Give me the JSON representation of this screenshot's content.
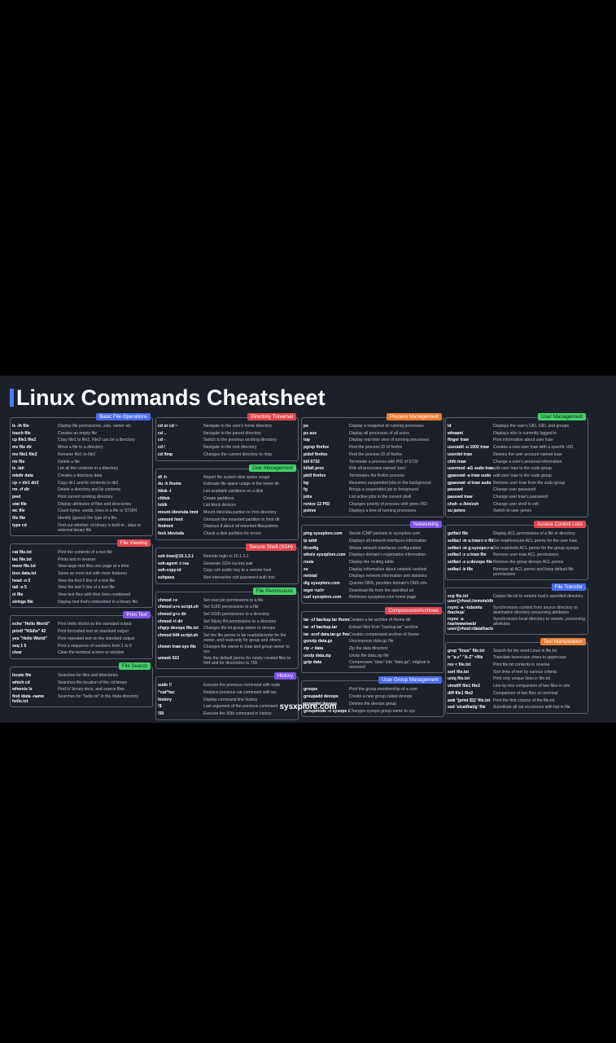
{
  "title": "Linux Commands Cheatsheet",
  "footer": "sysxplore.com",
  "colors": {
    "blue": "#4a6cf0",
    "red": "#e2464f",
    "green": "#44d06a",
    "purple": "#7d52e8",
    "orange": "#ee7d32"
  },
  "columns": [
    {
      "sections": [
        {
          "title": "Basic File Operations",
          "color": "#4a6cf0",
          "text": "#ffffff",
          "rows": [
            {
              "cmd": "ls -lh file",
              "desc": "Display file permissions, size, owner etc"
            },
            {
              "cmd": "touch file",
              "desc": "Creates an empty file"
            },
            {
              "cmd": "cp file1 file2",
              "desc": "Copy file1 to file2, File2 can be a directory"
            },
            {
              "cmd": "mv file dir",
              "desc": "Move a file to a directory"
            },
            {
              "cmd": "mv file1 file2",
              "desc": "Rename file1 to file2"
            },
            {
              "cmd": "rm file",
              "desc": "Delete a file"
            },
            {
              "cmd": "ls -lah",
              "desc": "List all the contents in a directory"
            },
            {
              "cmd": "mkdir data",
              "desc": "Creates a directory data"
            },
            {
              "cmd": "cp -r dir1 dir2",
              "desc": "Copy dir1 and its contents to dir2"
            },
            {
              "cmd": "rm -rf dir",
              "desc": "Delete a directory and its contents"
            },
            {
              "cmd": "pwd",
              "desc": "Print current working directory"
            },
            {
              "cmd": "stat file",
              "desc": "Display attributes of files and directories"
            },
            {
              "cmd": "wc file",
              "desc": "Count bytes, words, lines in a file or STDIN"
            },
            {
              "cmd": "file file",
              "desc": "Identify (guess) the type of a file."
            },
            {
              "cmd": "type cd",
              "desc": "Find out whether cd binary is built-in , alias or external binary file",
              "tall": true
            }
          ]
        },
        {
          "title": "File Viewing",
          "color": "#e2464f",
          "text": "#ffffff",
          "rows": [
            {
              "cmd": "cat file.txt",
              "desc": "Print the contents of a text file"
            },
            {
              "cmd": "tac file.txt",
              "desc": "Prints text in reverse"
            },
            {
              "cmd": "more file.txt",
              "desc": "View large text files one page at a time"
            },
            {
              "cmd": "less data.txt",
              "desc": "Same as more but with more features"
            },
            {
              "cmd": "head -n 5",
              "desc": "View the first 5 line of a text file"
            },
            {
              "cmd": "tail -n 5",
              "desc": "View the last 5 line of a text file"
            },
            {
              "cmd": "nl file",
              "desc": "View text files with their lines numbered"
            },
            {
              "cmd": "strings file",
              "desc": "Display text that's embedded in a binary file"
            }
          ]
        },
        {
          "title": "Print Text",
          "color": "#7d52e8",
          "text": "#ffffff",
          "rows": [
            {
              "cmd": "echo \"Hello World\"",
              "desc": "Print Hello World on the standard output"
            },
            {
              "cmd": "printf \"%5d\\n\" 42",
              "desc": "Print formatted text on standard output"
            },
            {
              "cmd": "yes \"Hello World\"",
              "desc": "Print repeated text on the standard output"
            },
            {
              "cmd": "seq 1 5",
              "desc": "Print a sequence of numbers from 1 to 5"
            },
            {
              "cmd": "clear",
              "desc": "Clear the terminal screen or window"
            }
          ]
        },
        {
          "title": "File Search",
          "color": "#44d06a",
          "text": "#10241a",
          "rows": [
            {
              "cmd": "locate file",
              "desc": "Searches for files and directories"
            },
            {
              "cmd": "which cd",
              "desc": "Searches the location of the cd binary"
            },
            {
              "cmd": "whereis ls",
              "desc": "Find ls' binary docs, and source files"
            },
            {
              "cmd": "find /data -name hello.txt",
              "desc": "Searches for \"hello.txt\" in the /data directory",
              "tall": true
            }
          ]
        }
      ]
    },
    {
      "sections": [
        {
          "title": "Directory Traversal",
          "color": "#e2464f",
          "text": "#ffffff",
          "rows": [
            {
              "cmd": "cd or cd ~",
              "desc": "Navigate to the user's home directory"
            },
            {
              "cmd": "cd ..",
              "desc": "Navigate to the parent directory"
            },
            {
              "cmd": "cd -",
              "desc": "Switch to the previous working directory"
            },
            {
              "cmd": "cd /",
              "desc": "Navigate to the root directory"
            },
            {
              "cmd": "cd /tmp",
              "desc": "Changes the current directory to /tmp"
            }
          ]
        },
        {
          "title": "Disk Management",
          "color": "#44d06a",
          "text": "#10241a",
          "rows": [
            {
              "cmd": "df -h",
              "desc": "Report file system disk space usage"
            },
            {
              "cmd": "du -h /home",
              "desc": "Estimate file space usage in the home dir"
            },
            {
              "cmd": "fdisk -l",
              "desc": "List available partitions on a disk"
            },
            {
              "cmd": "cfdisk",
              "desc": "Create partitions"
            },
            {
              "cmd": "lsblk",
              "desc": "List block devices"
            },
            {
              "cmd": "mount /dev/sda /mnt",
              "desc": "Mount /dev/sda partion to /mnt directory"
            },
            {
              "cmd": "umount /mnt",
              "desc": "Unmount the mounted partition in /mnt dir"
            },
            {
              "cmd": "findmnt",
              "desc": "Displays if about all mounted filesystems"
            },
            {
              "cmd": "fsck /dev/sda",
              "desc": "Check a disk partition for errors"
            }
          ]
        },
        {
          "title": "Secure Shell (SSH)",
          "color": "#e2464f",
          "text": "#ffffff",
          "rows": [
            {
              "cmd": "ssh traw@10.1.3.1",
              "desc": "Remote login to 10.1.3.1"
            },
            {
              "cmd": "ssh-agent -t rsa",
              "desc": "Generate SSH rsa key pair"
            },
            {
              "cmd": "ssh-copy-id",
              "desc": "Copy ssh public key to a remote host"
            },
            {
              "cmd": "sshpass",
              "desc": "Non-interactive ssh password auth tool"
            }
          ]
        },
        {
          "title": "File Permissions",
          "color": "#44d06a",
          "text": "#10241a",
          "rows": [
            {
              "cmd": "chmod +x",
              "desc": "Set execute permissions to a file"
            },
            {
              "cmd": "chmod u+s script.sh",
              "desc": "Set SUID permissions to a file"
            },
            {
              "cmd": "chmod g+s dir",
              "desc": "Set SGID permissions to a directory"
            },
            {
              "cmd": "chmod +t dir",
              "desc": "Set Sticky Bit permissions to a directory"
            },
            {
              "cmd": "chgrp devops file.txt",
              "desc": "Changes file.txt group owner to devops"
            },
            {
              "cmd": "chmod 644 script.sh",
              "desc": "Set the file perms to be readable/write for the owner, and read-only for group and others",
              "tall": true
            },
            {
              "cmd": "chown traw:sys file",
              "desc": "Changes file owner to traw and group owner to sys",
              "tall": true
            },
            {
              "cmd": "umask 022",
              "desc": "Sets the default perms for newly created files to 644 and for directories to 755",
              "tall": true
            }
          ]
        },
        {
          "title": "History",
          "color": "#7d52e8",
          "text": "#ffffff",
          "rows": [
            {
              "cmd": "sudo !!",
              "desc": "Execute the previous command with sudo"
            },
            {
              "cmd": "^cat^tac",
              "desc": "Replace previous cat command with tac"
            },
            {
              "cmd": "history",
              "desc": "Display command line history"
            },
            {
              "cmd": "!$",
              "desc": "Last argument of the previous command"
            },
            {
              "cmd": "!50",
              "desc": "Execute the 50th command in history"
            }
          ]
        }
      ]
    },
    {
      "sections": [
        {
          "title": "Process Management",
          "color": "#ee7d32",
          "text": "#ffffff",
          "rows": [
            {
              "cmd": "ps",
              "desc": "Display a snapshot of running processes"
            },
            {
              "cmd": "ps aux",
              "desc": "Display all processes of all users"
            },
            {
              "cmd": "top",
              "desc": "Display real-time view of running processes"
            },
            {
              "cmd": "pgrep firefox",
              "desc": "Find the process ID of firefox"
            },
            {
              "cmd": "pidof firefox",
              "desc": "Find the process ID of firefox"
            },
            {
              "cmd": "kill 6732",
              "desc": "Terminate a process with PID of 6732"
            },
            {
              "cmd": "killall proc",
              "desc": "Kills all processes named 'proc'"
            },
            {
              "cmd": "pkill firefox",
              "desc": "Terminates the firefox process"
            },
            {
              "cmd": "bg",
              "desc": "Resumes suspended jobs in the background"
            },
            {
              "cmd": "fg",
              "desc": "Brings a suspended job to foreground"
            },
            {
              "cmd": "jobs",
              "desc": "List active jobs in the current shell"
            },
            {
              "cmd": "renice 12 PID",
              "desc": "Changes priority of process with given PID"
            },
            {
              "cmd": "pstree",
              "desc": "Displays a tree of running processes"
            }
          ]
        },
        {
          "title": "Networking",
          "color": "#7d52e8",
          "text": "#ffffff",
          "rows": [
            {
              "cmd": "ping sysxplore.com",
              "desc": "Sends ICMP packets to sysxplore.com"
            },
            {
              "cmd": "ip addr",
              "desc": "Displays all network interfaces information"
            },
            {
              "cmd": "ifconfig",
              "desc": "Shows network interfaces configuration"
            },
            {
              "cmd": "whois sysxplore.com",
              "desc": "Displays domain's registration information"
            },
            {
              "cmd": "route",
              "desc": "Display the routing table"
            },
            {
              "cmd": "ss",
              "desc": "Display information about network sockets"
            },
            {
              "cmd": "netstat",
              "desc": "Displays network information and statistics"
            },
            {
              "cmd": "dig sysxplore.com",
              "desc": "Queries DNS, provides domain's DNS info"
            },
            {
              "cmd": "wget <url>",
              "desc": "Download file from the specified url"
            },
            {
              "cmd": "curl sysxplore.com",
              "desc": "Retrieves sysxplore.com home page"
            }
          ]
        },
        {
          "title": "Compression/Archives",
          "color": "#e2464f",
          "text": "#ffffff",
          "rows": [
            {
              "cmd": "tar -cf backup.tar /home",
              "desc": "Creates a tar archive of /home dir"
            },
            {
              "cmd": "tar -xf backup.tar",
              "desc": "Extract files from \"backup.tar\" archive"
            },
            {
              "cmd": "tar -zcvf data.tar.gz /home",
              "desc": "Creates compressed archive of /home"
            },
            {
              "cmd": "gunzip data.gz",
              "desc": "Uncompress data.gz file"
            },
            {
              "cmd": "zip -r data",
              "desc": "Zip the data directory"
            },
            {
              "cmd": "unzip data.zip",
              "desc": "Unzip the data.zip file"
            },
            {
              "cmd": "gzip data",
              "desc": "Compresses \"data\" into \"data.gz\", original is removed",
              "tall": true
            }
          ]
        },
        {
          "title": "User Group Management",
          "color": "#4a6cf0",
          "text": "#ffffff",
          "rows": [
            {
              "cmd": "groups",
              "desc": "Print the group membership of a user"
            },
            {
              "cmd": "groupadd devops",
              "desc": "Create a new group called devops"
            },
            {
              "cmd": "groupdel devops",
              "desc": "Deletes the devops group"
            },
            {
              "cmd": "groupmode -n sysops sys",
              "desc": "Changes sysops group name to sys"
            }
          ]
        }
      ]
    },
    {
      "sections": [
        {
          "title": "User Management",
          "color": "#44d06a",
          "text": "#10241a",
          "rows": [
            {
              "cmd": "id",
              "desc": "Displays the user's UID, GID, and groups"
            },
            {
              "cmd": "whoami",
              "desc": "Displays who is currently logged in"
            },
            {
              "cmd": "finger traw",
              "desc": "Print information about user traw"
            },
            {
              "cmd": "useradd -u 1002 traw",
              "desc": "Creates a new user traw with a specific UID"
            },
            {
              "cmd": "userdel traw",
              "desc": "Deletes the user account named traw"
            },
            {
              "cmd": "chfn traw",
              "desc": "Change a user's personal information"
            },
            {
              "cmd": "usermod -aG sudo traw",
              "desc": "add user traw to the sudo group"
            },
            {
              "cmd": "gpasswd -a traw sudo",
              "desc": "add user traw to the sudo group"
            },
            {
              "cmd": "gpasswd -d traw sudo",
              "desc": "Remove user traw from the sudo group"
            },
            {
              "cmd": "passwd",
              "desc": "Change user password"
            },
            {
              "cmd": "passwd traw",
              "desc": "Change user traw's password"
            },
            {
              "cmd": "chsh -s /bin/zsh",
              "desc": "Change user shell to zsh"
            },
            {
              "cmd": "su james",
              "desc": "Switch to user james"
            }
          ]
        },
        {
          "title": "Access Control Lists",
          "color": "#e2464f",
          "text": "#ffffff",
          "rows": [
            {
              "cmd": "getfacl file",
              "desc": "Display ACL permissions of a file or directory"
            },
            {
              "cmd": "setfacl -m u:traw:r-x file",
              "desc": "Set read/execute ACL perms for the user traw"
            },
            {
              "cmd": "setfacl -m g:sysops:r-w file",
              "desc": "Set read/write ACL perms for the group sysops"
            },
            {
              "cmd": "setfacl -x u:traw file",
              "desc": "Remove user traw ACL permissions"
            },
            {
              "cmd": "setfacl -x u:devops file",
              "desc": "Remove the group devops ACL perms"
            },
            {
              "cmd": "setfacl -b file",
              "desc": "Remove all ACL perms and keep default file permissions",
              "tall": true
            }
          ]
        },
        {
          "title": "File Transfer",
          "color": "#4a6cf0",
          "text": "#ffffff",
          "rows": [
            {
              "cmd": "scp file.txt user@rhost:/remote/dir",
              "desc": "Copies file.txt to remote host's specified directory",
              "tall": true
            },
            {
              "cmd": "rsync -a ~/ubuntu /backup/",
              "desc": "Synchronizes content from source directory to destination directory preserving attributes",
              "tall": true
            },
            {
              "cmd": "rsync -a /var/www/web/ user@rhost:/data/backup/",
              "desc": "Synchronizes local directory to remote, preserving attributes",
              "tall": true
            }
          ]
        },
        {
          "title": "Text Manipulation",
          "color": "#ee7d32",
          "text": "#ffffff",
          "rows": [
            {
              "cmd": "grep \"linux\" file.txt",
              "desc": "Search for the word Linux in file.txt"
            },
            {
              "cmd": "tr \"a-z\" \"A-Z\" <file",
              "desc": "Translate lowercase chars to uppercase"
            },
            {
              "cmd": "rev < file.txt",
              "desc": "Print file.txt contents in reverse"
            },
            {
              "cmd": "sort file.txt",
              "desc": "Sort lines of text by various criteria"
            },
            {
              "cmd": "uniq file.txt",
              "desc": "Print only unique lines in file.txt"
            },
            {
              "cmd": "vimdiff file1 file2",
              "desc": "Line-by-line comparison of two files in vim"
            },
            {
              "cmd": "diff file1 file2",
              "desc": "Comparison of two files on terminal"
            },
            {
              "cmd": "awk '{print $1}' file.txt",
              "desc": "Print the first column of the file.txt"
            },
            {
              "cmd": "sed 's/cat/bat/g' file",
              "desc": "Substitute all cat occurence with bat in file"
            }
          ]
        }
      ]
    }
  ]
}
